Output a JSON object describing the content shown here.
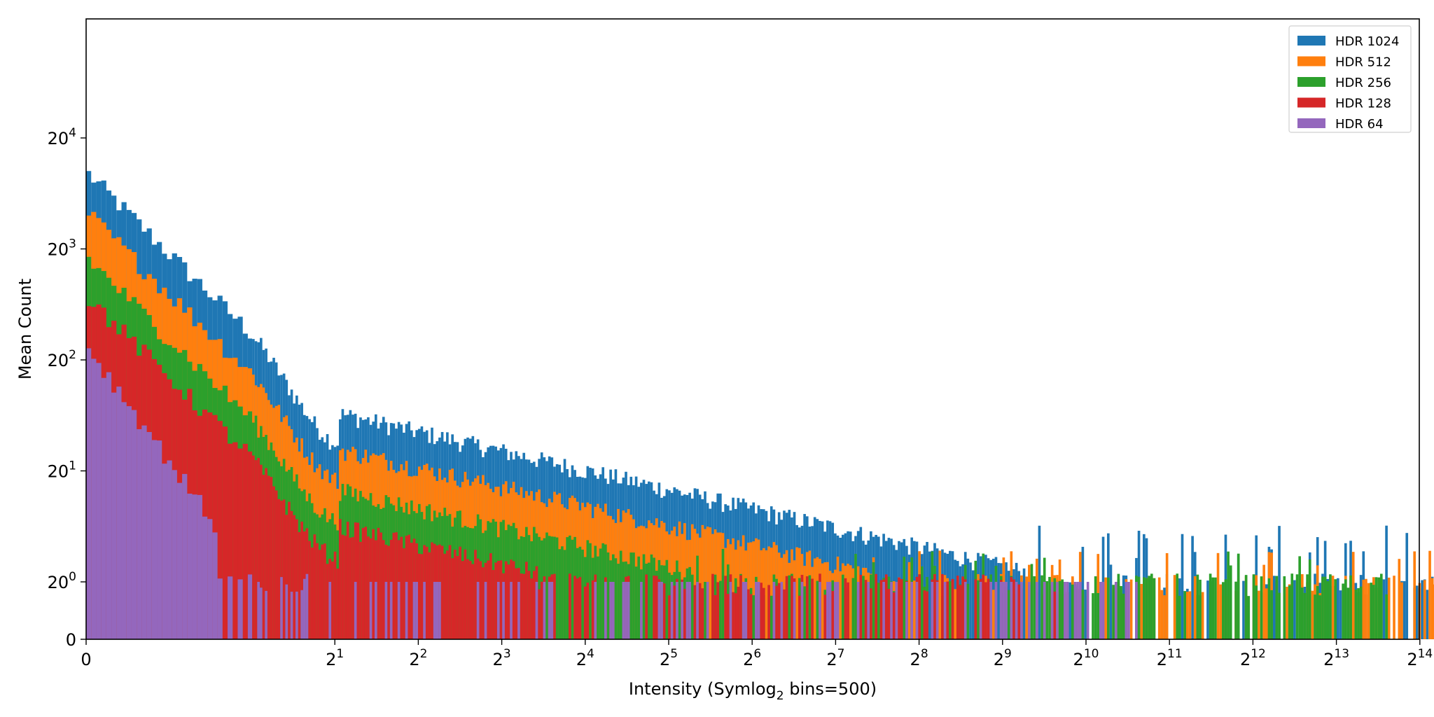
{
  "chart_data": {
    "type": "bar",
    "title": "",
    "xlabel": "Intensity (Symlog",
    "xlabel_sub": "2",
    "xlabel_tail": " bins=500)",
    "ylabel": "Mean Count",
    "x_scale": "symlog base 2",
    "y_scale": "symlog base 20",
    "x_ticks": [
      {
        "base": "0",
        "exp": ""
      },
      {
        "base": "2",
        "exp": "1"
      },
      {
        "base": "2",
        "exp": "2"
      },
      {
        "base": "2",
        "exp": "3"
      },
      {
        "base": "2",
        "exp": "4"
      },
      {
        "base": "2",
        "exp": "5"
      },
      {
        "base": "2",
        "exp": "6"
      },
      {
        "base": "2",
        "exp": "7"
      },
      {
        "base": "2",
        "exp": "8"
      },
      {
        "base": "2",
        "exp": "9"
      },
      {
        "base": "2",
        "exp": "10"
      },
      {
        "base": "2",
        "exp": "11"
      },
      {
        "base": "2",
        "exp": "12"
      },
      {
        "base": "2",
        "exp": "13"
      },
      {
        "base": "2",
        "exp": "14"
      }
    ],
    "y_ticks": [
      {
        "base": "0",
        "exp": ""
      },
      {
        "base": "20",
        "exp": "0"
      },
      {
        "base": "20",
        "exp": "1"
      },
      {
        "base": "20",
        "exp": "2"
      },
      {
        "base": "20",
        "exp": "3"
      },
      {
        "base": "20",
        "exp": "4"
      }
    ],
    "grid": false,
    "legend_position": "top-right",
    "series": [
      {
        "name": "HDR 1024",
        "color": "#1f77b4",
        "peak": 65000,
        "bump_start": 2.05,
        "bump_value": 95,
        "max_x": 18500,
        "tail_cap": 4
      },
      {
        "name": "HDR 512",
        "color": "#ff7f0e",
        "peak": 22000,
        "bump_start": 2.05,
        "bump_value": 36,
        "max_x": 19000,
        "tail_cap": 2
      },
      {
        "name": "HDR 256",
        "color": "#2ca02c",
        "peak": 6500,
        "bump_start": 2.05,
        "bump_value": 12,
        "max_x": 13000,
        "tail_cap": 2
      },
      {
        "name": "HDR 128",
        "color": "#d62728",
        "peak": 2300,
        "bump_start": 2.05,
        "bump_value": 4.5,
        "max_x": 800,
        "tail_cap": 1
      },
      {
        "name": "HDR 64",
        "color": "#9467bd",
        "peak": 600,
        "bump_start": 0,
        "bump_value": 0,
        "max_x": 1600,
        "tail_cap": 1
      }
    ]
  }
}
